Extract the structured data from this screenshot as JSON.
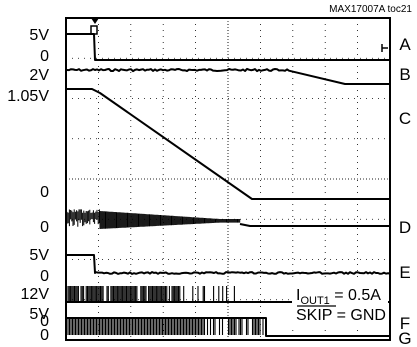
{
  "figure_id": "MAX17007A toc21",
  "chart_data": {
    "type": "line",
    "traces": [
      {
        "id": "A",
        "ref_labels": [
          "5V",
          "0"
        ]
      },
      {
        "id": "B",
        "ref_labels": [
          "2V"
        ]
      },
      {
        "id": "C",
        "ref_labels": [
          "1.05V",
          "0"
        ]
      },
      {
        "id": "D",
        "ref_labels": [
          "0"
        ]
      },
      {
        "id": "E",
        "ref_labels": [
          "5V",
          "0"
        ]
      },
      {
        "id": "F",
        "ref_labels": [
          "12V",
          "0"
        ]
      },
      {
        "id": "G",
        "ref_labels": [
          "5V",
          "0"
        ]
      }
    ],
    "annotation": {
      "current_label": "I",
      "current_subscript": "OUT1",
      "current_value": " = 0.5A",
      "skip_label": "SKIP",
      "skip_value": " = GND"
    },
    "grid": true,
    "divisions": {
      "x": 10,
      "y": 8
    }
  }
}
